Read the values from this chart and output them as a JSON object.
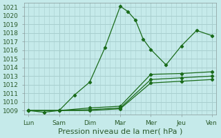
{
  "xlabel": "Pression niveau de la mer( hPa )",
  "background_color": "#c5eaea",
  "grid_color": "#a8cece",
  "line_color": "#1a6b1a",
  "x_labels": [
    "Lun",
    "Sam",
    "Dim",
    "Mar",
    "Mer",
    "Jeu",
    "Ven"
  ],
  "x_tick_positions": [
    0,
    1,
    2,
    3,
    4,
    5,
    6
  ],
  "ylim": [
    1008.5,
    1021.5
  ],
  "yticks": [
    1009,
    1010,
    1011,
    1012,
    1013,
    1014,
    1015,
    1016,
    1017,
    1018,
    1019,
    1020,
    1021
  ],
  "series1_x": [
    0,
    0.5,
    1.0,
    1.5,
    2.0,
    2.5,
    3.0,
    3.25,
    3.5,
    3.75,
    4.0,
    4.5,
    5.0,
    5.5,
    6.0
  ],
  "series1_y": [
    1009.0,
    1008.8,
    1009.0,
    1010.8,
    1012.3,
    1016.3,
    1021.1,
    1020.5,
    1019.5,
    1017.3,
    1016.1,
    1014.3,
    1016.5,
    1018.3,
    1017.7
  ],
  "series2_x": [
    0,
    1,
    2,
    3,
    4,
    5,
    6
  ],
  "series2_y": [
    1009.0,
    1009.0,
    1009.3,
    1009.5,
    1013.2,
    1013.3,
    1013.5
  ],
  "series3_x": [
    0,
    1,
    2,
    3,
    4,
    5,
    6
  ],
  "series3_y": [
    1009.0,
    1009.0,
    1009.1,
    1009.3,
    1012.6,
    1012.8,
    1013.0
  ],
  "series4_x": [
    0,
    1,
    2,
    3,
    4,
    5,
    6
  ],
  "series4_y": [
    1009.0,
    1009.0,
    1009.0,
    1009.2,
    1012.2,
    1012.4,
    1012.6
  ],
  "minor_x_per_day": 6,
  "xlabel_fontsize": 8,
  "tick_fontsize": 6.5
}
